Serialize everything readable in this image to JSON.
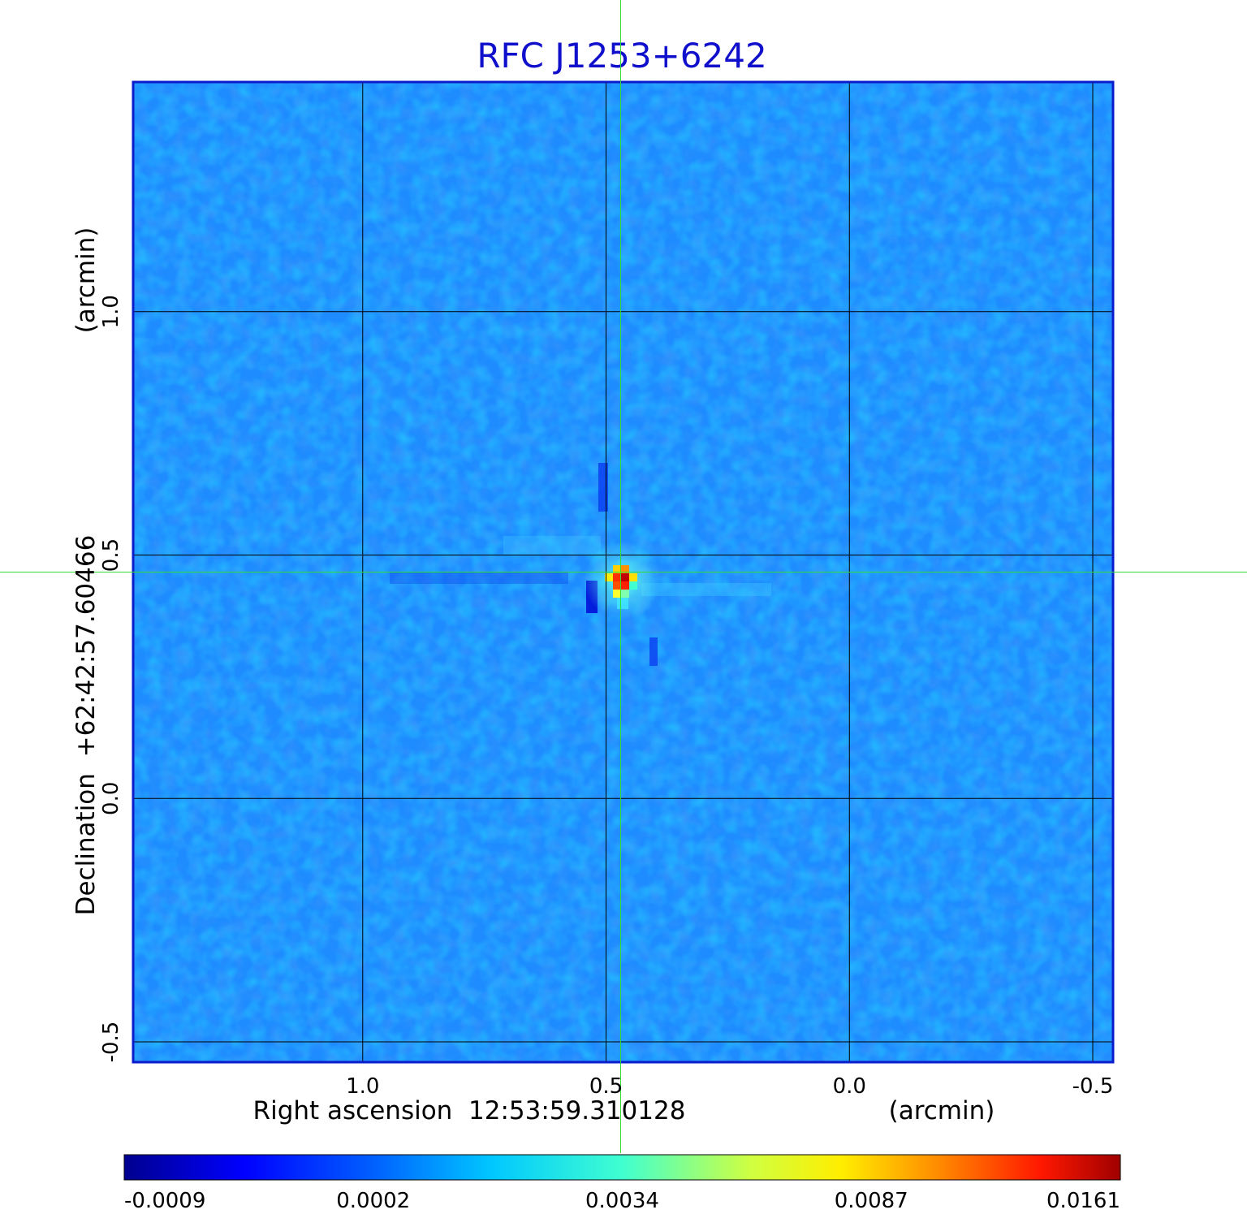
{
  "chart_data": {
    "type": "heatmap",
    "title": "RFC J1253+6242",
    "xlabel": "Right ascension  12:53:59.310128",
    "xunit": "(arcmin)",
    "ylabel": "Declination  +62:42:57.60466",
    "yunit": "(arcmin)",
    "xlim": [
      1.47,
      -0.54
    ],
    "ylim": [
      -0.54,
      1.47
    ],
    "x_ticks": [
      1.0,
      0.5,
      0.0,
      -0.5
    ],
    "x_tick_labels": [
      "1.0",
      "0.5",
      "0.0",
      "-0.5"
    ],
    "y_ticks": [
      -0.5,
      0.0,
      0.5,
      1.0
    ],
    "y_tick_labels": [
      "-0.5",
      "0.0",
      "0.5",
      "1.0"
    ],
    "grid": true,
    "grid_color": "#000000",
    "crosshair": {
      "x": 0.47,
      "y": 0.465,
      "color": "#33dd33"
    },
    "source_peak": {
      "x": 0.47,
      "y": 0.46,
      "value": 0.0161
    },
    "colormap": "jet",
    "colorbar": {
      "ticks": [
        -0.0009,
        0.0002,
        0.0034,
        0.0087,
        0.0161
      ],
      "tick_labels": [
        "-0.0009",
        "0.0002",
        "0.0034",
        "0.0087",
        "0.0161"
      ]
    },
    "colors": {
      "title": "#1010cc",
      "frame": "#0a1ccc",
      "background_field": "#1e8cff"
    }
  }
}
